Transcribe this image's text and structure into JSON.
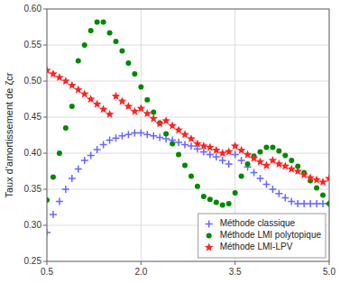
{
  "chart_data": {
    "type": "scatter",
    "ylabel": "Taux d'amortissement de ζcr",
    "xlim": [
      0.5,
      5.0
    ],
    "ylim": [
      0.25,
      0.6
    ],
    "xticks": [
      0.5,
      {
        "value": 2.0,
        "label": "2.0"
      },
      3.5,
      {
        "value": 5.0,
        "label": "5.0"
      }
    ],
    "yticks": [
      0.25,
      {
        "value": 0.3,
        "label": "0.30"
      },
      0.35,
      {
        "value": 0.4,
        "label": "0.40"
      },
      0.45,
      {
        "value": 0.5,
        "label": "0.50"
      },
      0.55,
      {
        "value": 0.6,
        "label": "0.60"
      }
    ],
    "grid": true,
    "legend": "lower right",
    "series": [
      {
        "name": "Méthode classique",
        "color": "#6666ff",
        "marker": "plus",
        "x": [
          0.5,
          0.6,
          0.7,
          0.8,
          0.9,
          1.0,
          1.1,
          1.2,
          1.3,
          1.4,
          1.5,
          1.6,
          1.7,
          1.8,
          1.9,
          2.0,
          2.1,
          2.2,
          2.3,
          2.4,
          2.5,
          2.6,
          2.7,
          2.8,
          2.9,
          3.0,
          3.1,
          3.2,
          3.3,
          3.4,
          3.5,
          3.6,
          3.7,
          3.8,
          3.9,
          4.0,
          4.1,
          4.2,
          4.3,
          4.4,
          4.5,
          4.6,
          4.7,
          4.8,
          4.9,
          5.0
        ],
        "values": [
          0.29,
          0.315,
          0.333,
          0.35,
          0.365,
          0.378,
          0.39,
          0.397,
          0.405,
          0.412,
          0.418,
          0.421,
          0.424,
          0.426,
          0.428,
          0.428,
          0.426,
          0.424,
          0.422,
          0.42,
          0.418,
          0.415,
          0.412,
          0.41,
          0.406,
          0.402,
          0.398,
          0.395,
          0.39,
          0.385,
          0.398,
          0.39,
          0.381,
          0.373,
          0.365,
          0.357,
          0.35,
          0.344,
          0.338,
          0.333,
          0.33,
          0.33,
          0.33,
          0.33,
          0.33,
          0.33
        ]
      },
      {
        "name": "Méthode LMI polytopique",
        "color": "#008800",
        "marker": "circle",
        "x": [
          0.5,
          0.6,
          0.7,
          0.8,
          0.9,
          1.0,
          1.1,
          1.2,
          1.3,
          1.4,
          1.5,
          1.6,
          1.7,
          1.8,
          1.9,
          2.0,
          2.1,
          2.2,
          2.3,
          2.4,
          2.5,
          2.6,
          2.7,
          2.8,
          2.9,
          3.0,
          3.1,
          3.2,
          3.3,
          3.4,
          3.5,
          3.6,
          3.7,
          3.8,
          3.9,
          4.0,
          4.1,
          4.2,
          4.3,
          4.4,
          4.5,
          4.6,
          4.7,
          4.8,
          4.9,
          5.0
        ],
        "values": [
          0.335,
          0.367,
          0.4,
          0.435,
          0.465,
          0.528,
          0.55,
          0.57,
          0.582,
          0.582,
          0.567,
          0.555,
          0.542,
          0.525,
          0.51,
          0.492,
          0.474,
          0.457,
          0.442,
          0.427,
          0.413,
          0.398,
          0.383,
          0.368,
          0.354,
          0.34,
          0.336,
          0.332,
          0.328,
          0.33,
          0.345,
          0.368,
          0.385,
          0.396,
          0.402,
          0.408,
          0.408,
          0.403,
          0.397,
          0.39,
          0.382,
          0.373,
          0.362,
          0.352,
          0.342,
          0.33
        ]
      },
      {
        "name": "Méthode LMI-LPV",
        "color": "#ff2222",
        "marker": "star",
        "x": [
          0.5,
          0.6,
          0.7,
          0.8,
          0.9,
          1.0,
          1.1,
          1.2,
          1.3,
          1.4,
          1.5,
          1.6,
          1.7,
          1.8,
          1.9,
          2.0,
          2.1,
          2.2,
          2.3,
          2.4,
          2.5,
          2.6,
          2.7,
          2.8,
          2.9,
          3.0,
          3.1,
          3.2,
          3.3,
          3.4,
          3.5,
          3.6,
          3.7,
          3.8,
          3.9,
          4.0,
          4.1,
          4.2,
          4.3,
          4.4,
          4.5,
          4.6,
          4.7,
          4.8,
          4.9,
          5.0
        ],
        "values": [
          0.515,
          0.51,
          0.505,
          0.5,
          0.494,
          0.488,
          0.482,
          0.475,
          0.468,
          0.461,
          0.454,
          0.479,
          0.472,
          0.465,
          0.458,
          0.462,
          0.455,
          0.448,
          0.441,
          0.445,
          0.438,
          0.432,
          0.426,
          0.42,
          0.413,
          0.41,
          0.408,
          0.404,
          0.4,
          0.402,
          0.41,
          0.404,
          0.398,
          0.393,
          0.388,
          0.383,
          0.39,
          0.385,
          0.382,
          0.378,
          0.375,
          0.37,
          0.366,
          0.363,
          0.36,
          0.365
        ]
      }
    ]
  }
}
